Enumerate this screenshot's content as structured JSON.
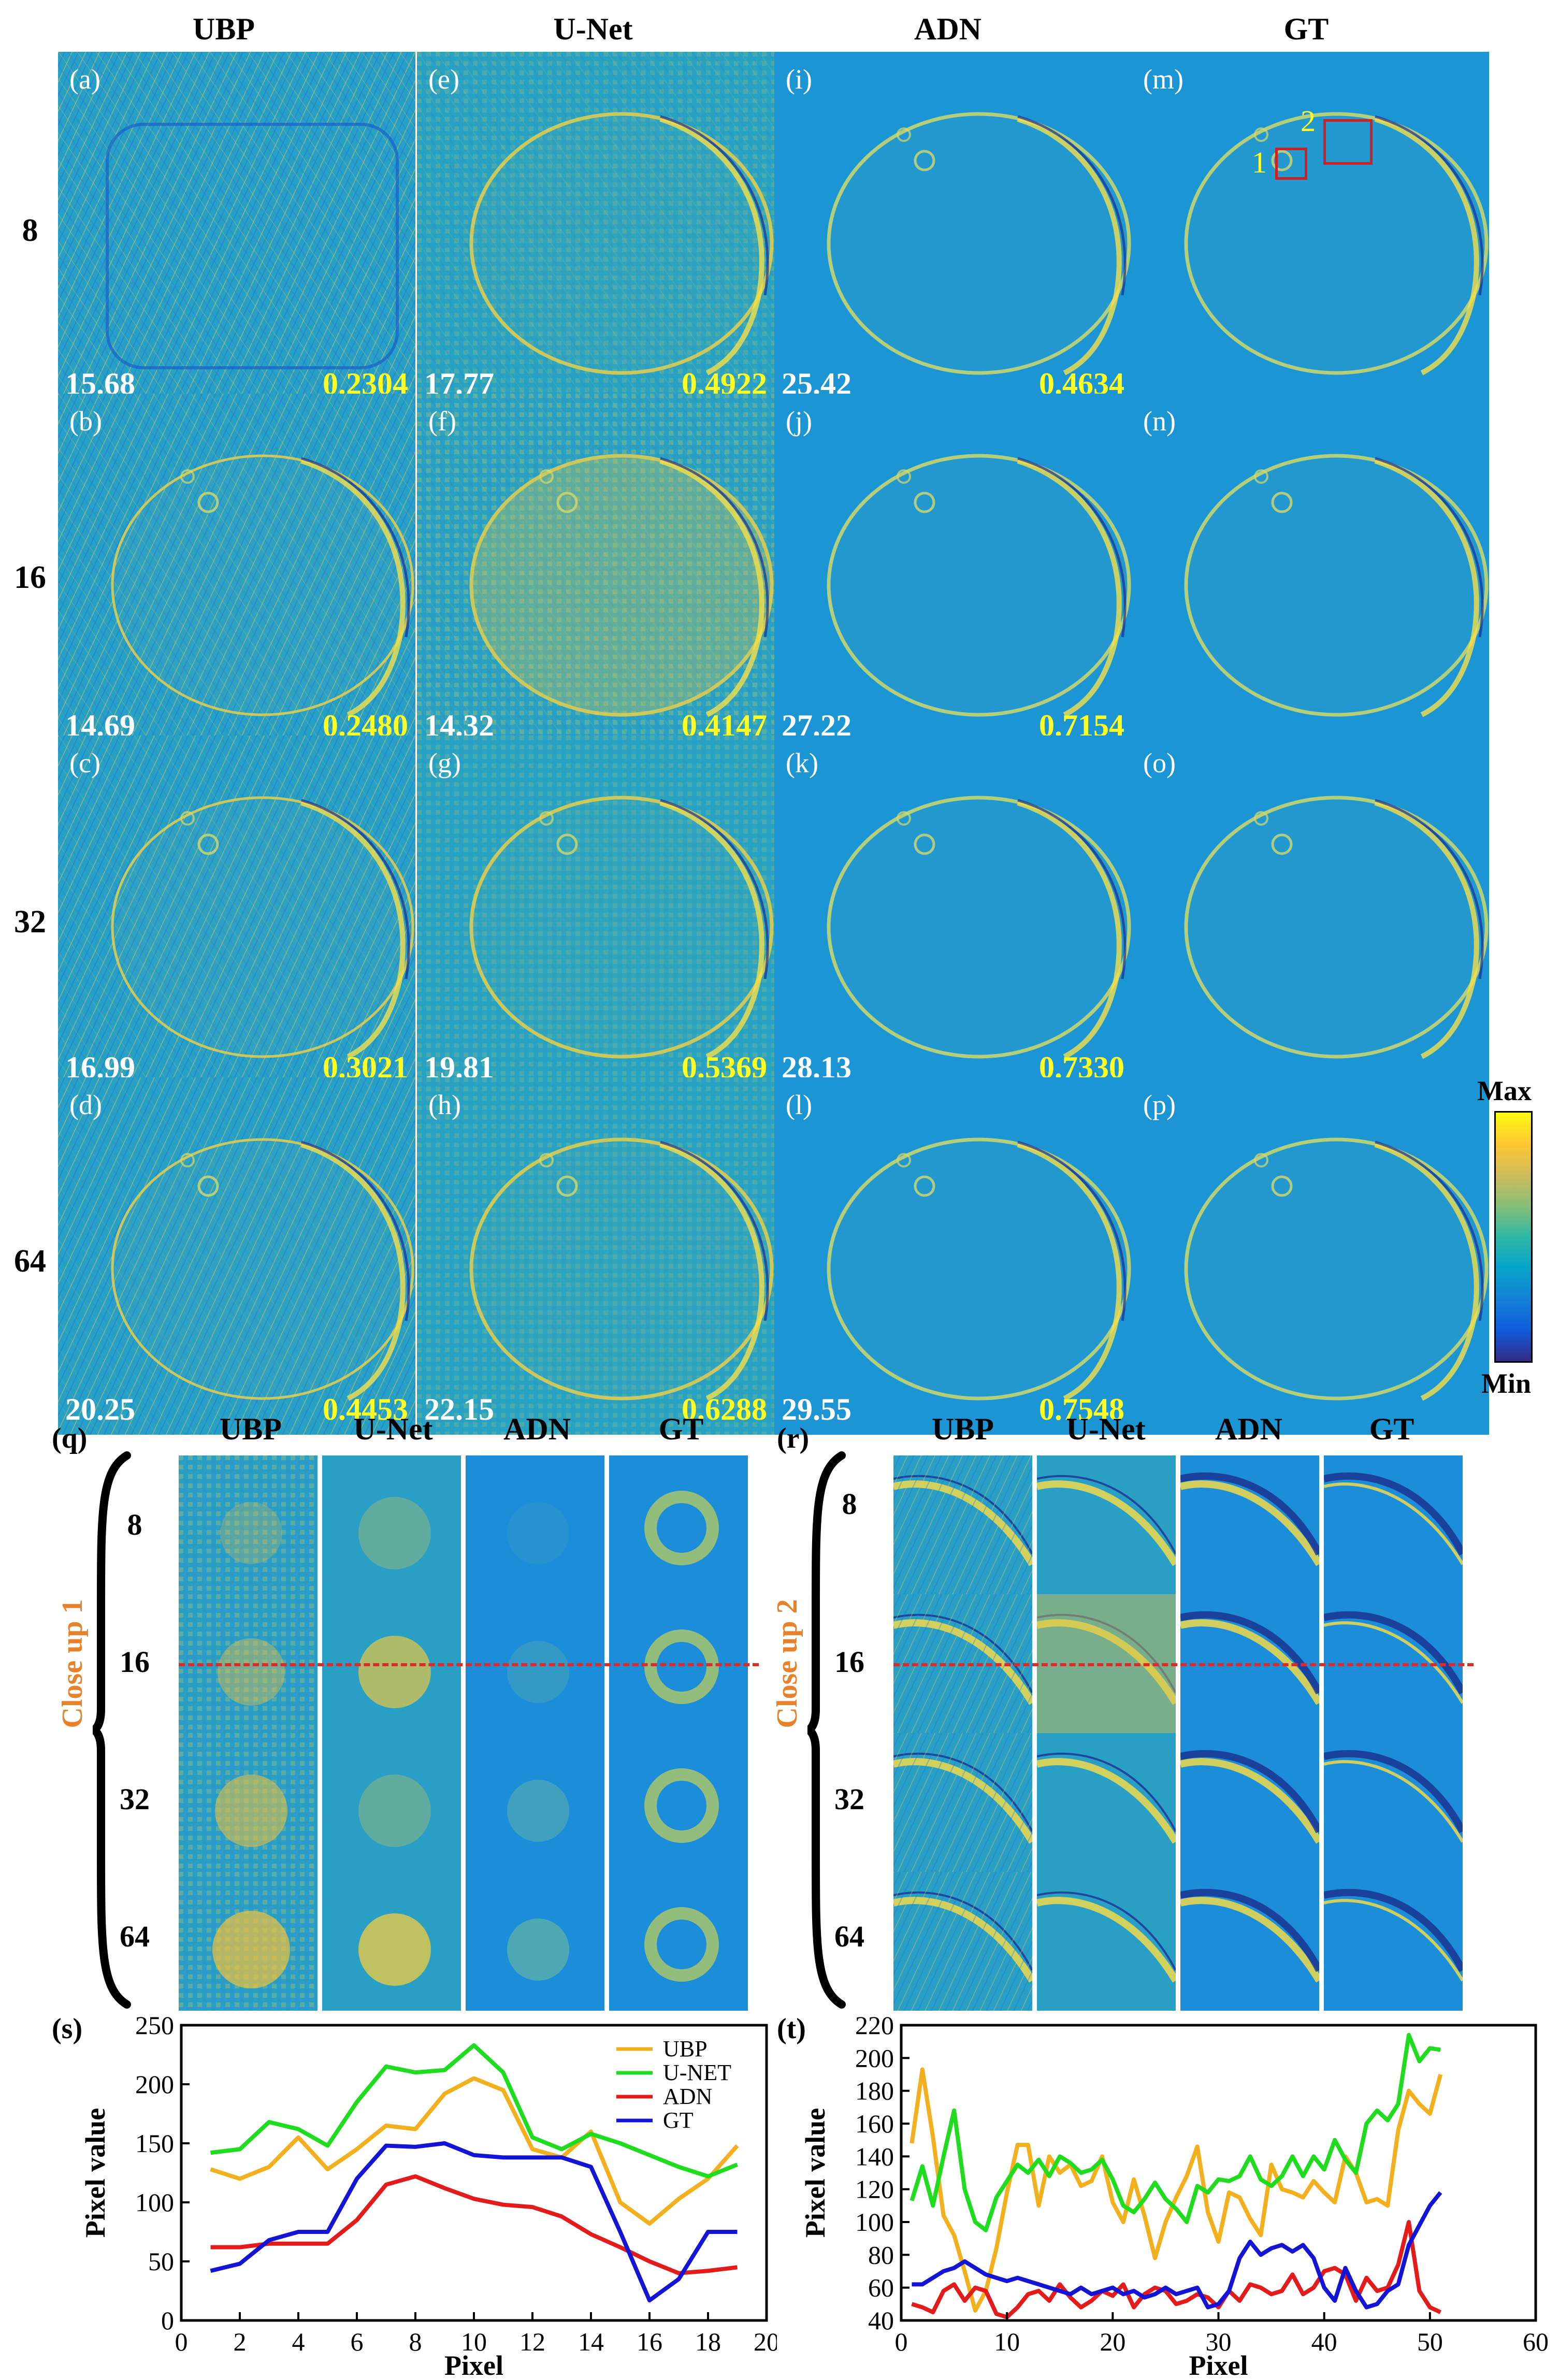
{
  "columns": [
    "UBP",
    "U-Net",
    "ADN",
    "GT"
  ],
  "rows": [
    "8",
    "16",
    "32",
    "64"
  ],
  "panels": [
    [
      "(a)",
      "(e)",
      "(i)",
      "(m)"
    ],
    [
      "(b)",
      "(f)",
      "(j)",
      "(n)"
    ],
    [
      "(c)",
      "(g)",
      "(k)",
      "(o)"
    ],
    [
      "(d)",
      "(h)",
      "(l)",
      "(p)"
    ]
  ],
  "metrics": {
    "psnr": [
      [
        "15.68",
        "17.77",
        "25.42"
      ],
      [
        "14.69",
        "14.32",
        "27.22"
      ],
      [
        "16.99",
        "19.81",
        "28.13"
      ],
      [
        "20.25",
        "22.15",
        "29.55"
      ]
    ],
    "ssim": [
      [
        "0.2304",
        "0.4922",
        "0.4634"
      ],
      [
        "0.2480",
        "0.4147",
        "0.7154"
      ],
      [
        "0.3021",
        "0.5369",
        "0.7330"
      ],
      [
        "0.4453",
        "0.6288",
        "0.7548"
      ]
    ]
  },
  "roi_labels": [
    "1",
    "2"
  ],
  "colorbar": {
    "max": "Max",
    "min": "Min",
    "colors": [
      "#352a87",
      "#0f5cdd",
      "#1481d6",
      "#06a4ca",
      "#2eb7a4",
      "#87bf77",
      "#d1bb59",
      "#fec832",
      "#f9fb0e"
    ]
  },
  "closeups": {
    "q": {
      "label": "(q)",
      "title": "Close up 1"
    },
    "r": {
      "label": "(r)",
      "title": "Close up 2"
    }
  },
  "chart_data": [
    {
      "type": "line",
      "label": "(s)",
      "xlabel": "Pixel",
      "ylabel": "Pixel value",
      "xlim": [
        0,
        20
      ],
      "ylim": [
        0,
        250
      ],
      "xticks": [
        0,
        2,
        4,
        6,
        8,
        10,
        12,
        14,
        16,
        18,
        20
      ],
      "yticks": [
        0,
        50,
        100,
        150,
        200,
        250
      ],
      "legend_position": "top-right",
      "x": [
        1,
        2,
        3,
        4,
        5,
        6,
        7,
        8,
        9,
        10,
        11,
        12,
        13,
        14,
        15,
        16,
        17,
        18,
        19
      ],
      "series": [
        {
          "name": "UBP",
          "color": "#f2b01e",
          "values": [
            128,
            120,
            130,
            155,
            128,
            145,
            165,
            162,
            192,
            205,
            195,
            145,
            138,
            160,
            100,
            82,
            103,
            120,
            148
          ]
        },
        {
          "name": "U-NET",
          "color": "#1fdc1f",
          "values": [
            142,
            145,
            168,
            162,
            148,
            185,
            215,
            210,
            212,
            233,
            210,
            155,
            145,
            158,
            150,
            140,
            130,
            122,
            132
          ]
        },
        {
          "name": "ADN",
          "color": "#e31b1b",
          "values": [
            62,
            62,
            65,
            65,
            65,
            85,
            115,
            122,
            112,
            103,
            98,
            96,
            88,
            73,
            62,
            50,
            40,
            42,
            45
          ]
        },
        {
          "name": "GT",
          "color": "#1414d6",
          "values": [
            42,
            48,
            68,
            75,
            75,
            120,
            148,
            147,
            150,
            140,
            138,
            138,
            138,
            130,
            75,
            17,
            35,
            75,
            75
          ]
        }
      ]
    },
    {
      "type": "line",
      "label": "(t)",
      "xlabel": "Pixel",
      "ylabel": "Pixel value",
      "xlim": [
        0,
        60
      ],
      "ylim": [
        40,
        220
      ],
      "xticks": [
        0,
        10,
        20,
        30,
        40,
        50,
        60
      ],
      "yticks": [
        40,
        60,
        80,
        100,
        120,
        140,
        160,
        180,
        200,
        220
      ],
      "x": [
        1,
        2,
        3,
        4,
        5,
        6,
        7,
        8,
        9,
        10,
        11,
        12,
        13,
        14,
        15,
        16,
        17,
        18,
        19,
        20,
        21,
        22,
        23,
        24,
        25,
        26,
        27,
        28,
        29,
        30,
        31,
        32,
        33,
        34,
        35,
        36,
        37,
        38,
        39,
        40,
        41,
        42,
        43,
        44,
        45,
        46,
        47,
        48,
        49,
        50,
        51
      ],
      "series": [
        {
          "name": "UBP",
          "color": "#f2b01e",
          "values": [
            148,
            193,
            152,
            104,
            92,
            70,
            46,
            58,
            84,
            118,
            147,
            147,
            110,
            140,
            130,
            135,
            122,
            125,
            140,
            112,
            100,
            126,
            104,
            78,
            100,
            115,
            128,
            146,
            106,
            88,
            118,
            115,
            102,
            92,
            135,
            120,
            118,
            115,
            125,
            118,
            112,
            140,
            130,
            112,
            114,
            110,
            156,
            180,
            172,
            166,
            190
          ]
        },
        {
          "name": "U-NET",
          "color": "#1fdc1f",
          "values": [
            113,
            134,
            110,
            140,
            168,
            120,
            100,
            95,
            115,
            125,
            135,
            130,
            138,
            128,
            140,
            136,
            130,
            132,
            138,
            126,
            110,
            106,
            114,
            124,
            114,
            108,
            100,
            122,
            118,
            126,
            125,
            128,
            140,
            126,
            122,
            128,
            140,
            128,
            140,
            132,
            150,
            138,
            130,
            160,
            168,
            162,
            172,
            214,
            198,
            206,
            205
          ]
        },
        {
          "name": "ADN",
          "color": "#e31b1b",
          "values": [
            50,
            48,
            45,
            58,
            62,
            52,
            60,
            58,
            44,
            42,
            48,
            56,
            58,
            52,
            62,
            54,
            48,
            52,
            58,
            55,
            62,
            48,
            56,
            60,
            58,
            50,
            52,
            56,
            54,
            48,
            58,
            52,
            62,
            60,
            56,
            58,
            68,
            56,
            60,
            70,
            72,
            68,
            52,
            66,
            58,
            60,
            74,
            100,
            58,
            48,
            45
          ]
        },
        {
          "name": "GT",
          "color": "#1414d6",
          "values": [
            62,
            62,
            66,
            70,
            72,
            76,
            72,
            68,
            66,
            64,
            66,
            64,
            62,
            60,
            58,
            56,
            60,
            56,
            58,
            60,
            56,
            58,
            54,
            56,
            60,
            56,
            58,
            60,
            48,
            50,
            58,
            78,
            88,
            80,
            84,
            86,
            82,
            86,
            78,
            60,
            52,
            72,
            58,
            48,
            50,
            58,
            62,
            86,
            98,
            110,
            118
          ]
        }
      ]
    }
  ]
}
